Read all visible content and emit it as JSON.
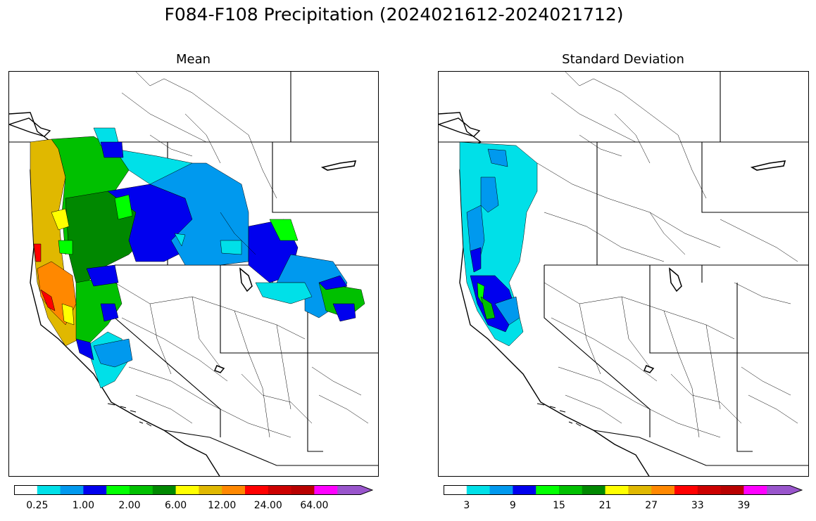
{
  "figure": {
    "title": "F084-F108 Precipitation (2024021612-2024021712)"
  },
  "panels": [
    {
      "title": "Mean",
      "colorbar": {
        "colors": [
          "#ffffff",
          "#00e0e8",
          "#0099ee",
          "#0000ee",
          "#00ff00",
          "#00c000",
          "#008800",
          "#ffff00",
          "#e0b800",
          "#ff8800",
          "#ff0000",
          "#cc0000",
          "#b80000",
          "#ff00ff",
          "#9955cc"
        ],
        "extend": "max",
        "tick_labels": [
          "0.25",
          "1.00",
          "2.00",
          "6.00",
          "12.00",
          "24.00",
          "64.00"
        ],
        "tick_boundaries": [
          1,
          3,
          5,
          7,
          9,
          11,
          13
        ]
      }
    },
    {
      "title": "Standard Deviation",
      "colorbar": {
        "colors": [
          "#ffffff",
          "#00e0e8",
          "#0099ee",
          "#0000ee",
          "#00ff00",
          "#00c000",
          "#008800",
          "#ffff00",
          "#e0b800",
          "#ff8800",
          "#ff0000",
          "#cc0000",
          "#b80000",
          "#ff00ff",
          "#9955cc"
        ],
        "extend": "max",
        "tick_labels": [
          "3",
          "9",
          "15",
          "21",
          "27",
          "33",
          "39"
        ],
        "tick_boundaries": [
          1,
          3,
          5,
          7,
          9,
          11,
          13
        ]
      }
    }
  ]
}
